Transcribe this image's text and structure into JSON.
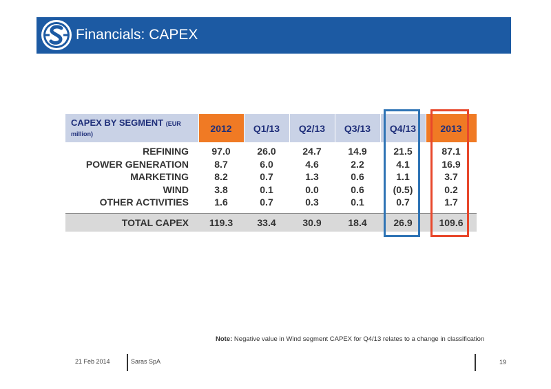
{
  "header": {
    "title": "Financials: CAPEX",
    "logo_icon": "saras-logo-icon",
    "bar_color": "#1c5aa3"
  },
  "table": {
    "segment_header": "CAPEX BY SEGMENT",
    "unit": "(EUR million)",
    "columns": [
      "2012",
      "Q1/13",
      "Q2/13",
      "Q3/13",
      "Q4/13",
      "2013"
    ],
    "rows": [
      {
        "label": "REFINING",
        "values": [
          "97.0",
          "26.0",
          "24.7",
          "14.9",
          "21.5",
          "87.1"
        ]
      },
      {
        "label": "POWER GENERATION",
        "values": [
          "8.7",
          "6.0",
          "4.6",
          "2.2",
          "4.1",
          "16.9"
        ]
      },
      {
        "label": "MARKETING",
        "values": [
          "8.2",
          "0.7",
          "1.3",
          "0.6",
          "1.1",
          "3.7"
        ]
      },
      {
        "label": "WIND",
        "values": [
          "3.8",
          "0.1",
          "0.0",
          "0.6",
          "(0.5)",
          "0.2"
        ]
      },
      {
        "label": "OTHER ACTIVITIES",
        "values": [
          "1.6",
          "0.7",
          "0.3",
          "0.1",
          "0.7",
          "1.7"
        ]
      }
    ],
    "total": {
      "label": "TOTAL CAPEX",
      "values": [
        "119.3",
        "33.4",
        "30.9",
        "18.4",
        "26.9",
        "109.6"
      ]
    },
    "header_color": "#c9d2e6",
    "highlight_column_color": "#f07a24",
    "highlight_q4_color": "#2f74b5",
    "highlight_2013_color": "#e8472b"
  },
  "note": {
    "label": "Note:",
    "text": " Negative value in Wind segment CAPEX for Q4/13 relates to a change in classification"
  },
  "footer": {
    "date": "21 Feb 2014",
    "company": "Saras SpA",
    "page": "19"
  }
}
